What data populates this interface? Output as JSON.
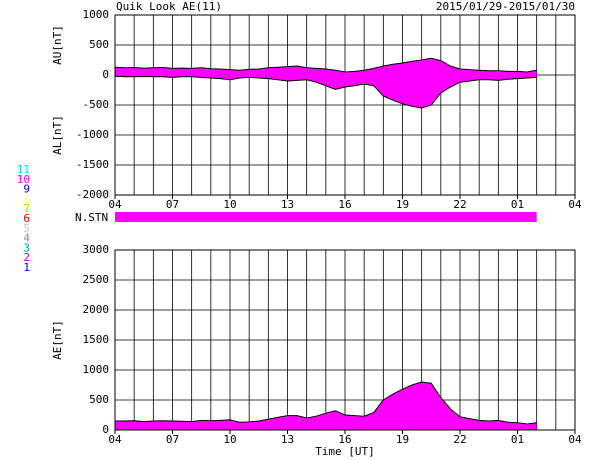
{
  "title": "Quik Look AE(11)",
  "date_range": "2015/01/29-2015/01/30",
  "legend": [
    {
      "label": "11",
      "color": "#00e0e0"
    },
    {
      "label": "10",
      "color": "#ff00ff"
    },
    {
      "label": "9",
      "color": "#0000ff"
    },
    {
      "label": "8",
      "color": "#ffff99"
    },
    {
      "label": "7",
      "color": "#d0d000"
    },
    {
      "label": "6",
      "color": "#ff0000"
    },
    {
      "label": "5",
      "color": "#c8c8c8"
    },
    {
      "label": "4",
      "color": "#909090"
    },
    {
      "label": "3",
      "color": "#009999"
    },
    {
      "label": "2",
      "color": "#cc00cc"
    },
    {
      "label": "1",
      "color": "#0000cc"
    }
  ],
  "station_strip": {
    "label": "N.STN",
    "color": "#ff00ff"
  },
  "chart_data": [
    {
      "type": "range",
      "ylabel_upper": "AU[nT]",
      "ylabel_lower": "AL[nT]",
      "color": "#ff00ff",
      "x": [
        4,
        4.5,
        5,
        5.5,
        6,
        6.5,
        7,
        7.5,
        8,
        8.5,
        9,
        9.5,
        10,
        10.5,
        11,
        11.5,
        12,
        12.5,
        13,
        13.5,
        14,
        14.5,
        15,
        15.5,
        16,
        16.5,
        17,
        17.5,
        18,
        18.5,
        19,
        19.5,
        20,
        20.5,
        21,
        21.5,
        22,
        22.5,
        23,
        23.5,
        24,
        24.5,
        25,
        25.5,
        26
      ],
      "series": [
        {
          "name": "AU",
          "values": [
            130,
            120,
            125,
            115,
            120,
            125,
            110,
            115,
            110,
            120,
            105,
            100,
            90,
            80,
            95,
            100,
            120,
            130,
            140,
            150,
            120,
            110,
            100,
            80,
            50,
            60,
            80,
            110,
            150,
            180,
            200,
            230,
            250,
            280,
            240,
            150,
            100,
            90,
            80,
            70,
            70,
            60,
            60,
            50,
            80
          ]
        },
        {
          "name": "AL",
          "values": [
            -20,
            -30,
            -30,
            -25,
            -30,
            -30,
            -40,
            -30,
            -30,
            -40,
            -50,
            -60,
            -80,
            -50,
            -40,
            -50,
            -60,
            -80,
            -100,
            -90,
            -80,
            -120,
            -180,
            -240,
            -200,
            -180,
            -150,
            -180,
            -350,
            -420,
            -480,
            -520,
            -550,
            -500,
            -300,
            -200,
            -120,
            -100,
            -80,
            -80,
            -90,
            -70,
            -60,
            -50,
            -40
          ]
        }
      ],
      "xlim": [
        4,
        28
      ],
      "xticks": [
        {
          "value": 4,
          "label": "04"
        },
        {
          "value": 7,
          "label": "07"
        },
        10,
        13,
        16,
        19,
        22,
        {
          "value": 25,
          "label": "01"
        },
        {
          "value": 28,
          "label": "04"
        }
      ],
      "xgrid_step": 1,
      "ylim": [
        -2000,
        1000
      ],
      "yticks": [
        1000,
        500,
        0,
        -500,
        -1000,
        -1500,
        -2000
      ]
    },
    {
      "type": "area",
      "ylabel": "AE[nT]",
      "xlabel": "Time [UT]",
      "color": "#ff00ff",
      "x": [
        4,
        4.5,
        5,
        5.5,
        6,
        6.5,
        7,
        7.5,
        8,
        8.5,
        9,
        9.5,
        10,
        10.5,
        11,
        11.5,
        12,
        12.5,
        13,
        13.5,
        14,
        14.5,
        15,
        15.5,
        16,
        16.5,
        17,
        17.5,
        18,
        18.5,
        19,
        19.5,
        20,
        20.5,
        21,
        21.5,
        22,
        22.5,
        23,
        23.5,
        24,
        24.5,
        25,
        25.5,
        26
      ],
      "series": [
        {
          "name": "AE",
          "values": [
            150,
            150,
            155,
            140,
            150,
            155,
            150,
            145,
            140,
            160,
            155,
            160,
            170,
            130,
            135,
            150,
            180,
            210,
            240,
            240,
            200,
            230,
            280,
            320,
            250,
            240,
            230,
            290,
            500,
            600,
            680,
            750,
            800,
            780,
            540,
            350,
            220,
            190,
            160,
            150,
            160,
            130,
            120,
            100,
            120
          ]
        }
      ],
      "xlim": [
        4,
        28
      ],
      "xticks": [
        {
          "value": 4,
          "label": "04"
        },
        {
          "value": 7,
          "label": "07"
        },
        10,
        13,
        16,
        19,
        22,
        {
          "value": 25,
          "label": "01"
        },
        {
          "value": 28,
          "label": "04"
        }
      ],
      "xgrid_step": 1,
      "ylim": [
        0,
        3000
      ],
      "yticks": [
        0,
        500,
        1000,
        1500,
        2000,
        2500,
        3000
      ]
    }
  ]
}
